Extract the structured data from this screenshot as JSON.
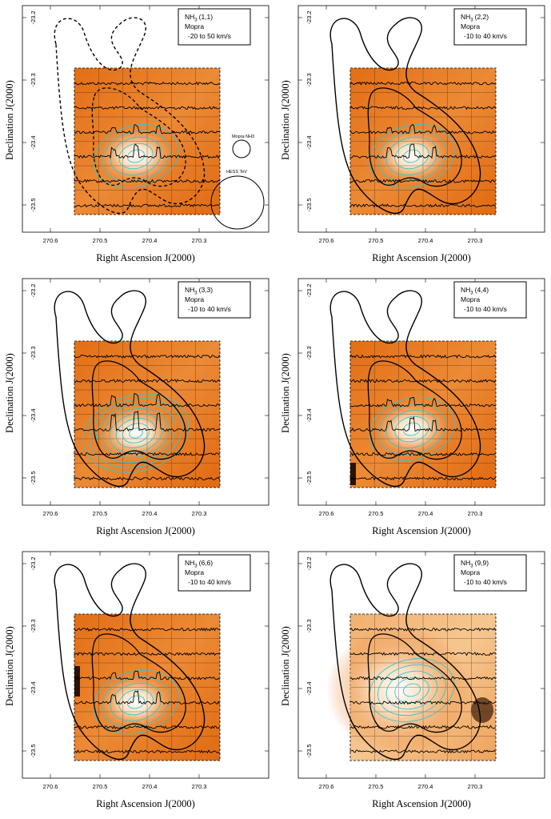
{
  "panels": [
    {
      "line": "(1,1)",
      "instrument": "Mopra",
      "vrange": "-20 to 50 km/s",
      "variant": "first",
      "xlabel": "Right Ascension J(2000)",
      "ylabel": "Declination J(2000)",
      "yticks": [
        "-23.2",
        "-23.3",
        "-23.4",
        "-23.5"
      ],
      "xticks": [
        "270.6",
        "270.5",
        "270.4",
        "270.3"
      ],
      "beam_labels": [
        "Mopra NH3",
        "HESS TeV"
      ]
    },
    {
      "line": "(2,2)",
      "instrument": "Mopra",
      "vrange": "-10 to 40 km/s",
      "variant": "plain",
      "xlabel": "Right Ascension J(2000)",
      "ylabel": "Declination J(2000)",
      "yticks": [
        "-23.2",
        "-23.3",
        "-23.4",
        "-23.5"
      ],
      "xticks": [
        "270.6",
        "270.5",
        "270.4",
        "270.3"
      ]
    },
    {
      "line": "(3,3)",
      "instrument": "Mopra",
      "vrange": "-10 to 40 km/s",
      "variant": "strong",
      "xlabel": "Right Ascension J(2000)",
      "ylabel": "Declination J(2000)",
      "yticks": [
        "-23.2",
        "-23.3",
        "-23.4",
        "-23.5"
      ],
      "xticks": [
        "270.6",
        "270.5",
        "270.4",
        "270.3"
      ]
    },
    {
      "line": "(4,4)",
      "instrument": "Mopra",
      "vrange": "-10 to 40 km/s",
      "variant": "plain",
      "xlabel": "Right Ascension J(2000)",
      "ylabel": "Declination J(2000)",
      "yticks": [
        "-23.2",
        "-23.3",
        "-23.4",
        "-23.5"
      ],
      "xticks": [
        "270.6",
        "270.5",
        "270.4",
        "270.3"
      ]
    },
    {
      "line": "(6,6)",
      "instrument": "Mopra",
      "vrange": "-10 to 40 km/s",
      "variant": "plain",
      "xlabel": "Right Ascension J(2000)",
      "ylabel": "Declination J(2000)",
      "yticks": [
        "-23.2",
        "-23.3",
        "-23.4",
        "-23.5"
      ],
      "xticks": [
        "270.6",
        "270.5",
        "270.4",
        "270.3"
      ]
    },
    {
      "line": "(9,9)",
      "instrument": "Mopra",
      "vrange": "-10 to 40 km/s",
      "variant": "pale",
      "xlabel": "Right Ascension J(2000)",
      "ylabel": "Declination J(2000)",
      "yticks": [
        "-23.2",
        "-23.3",
        "-23.4",
        "-23.5"
      ],
      "xticks": [
        "270.6",
        "270.5",
        "270.4",
        "270.3"
      ]
    }
  ],
  "molecule": "NH",
  "molecule_subscript": "3",
  "colors": {
    "map_orange": "#e8761e",
    "map_light": "#fff6e6",
    "contour_cyan": "#2fc6d8",
    "contour_black": "#000000"
  }
}
